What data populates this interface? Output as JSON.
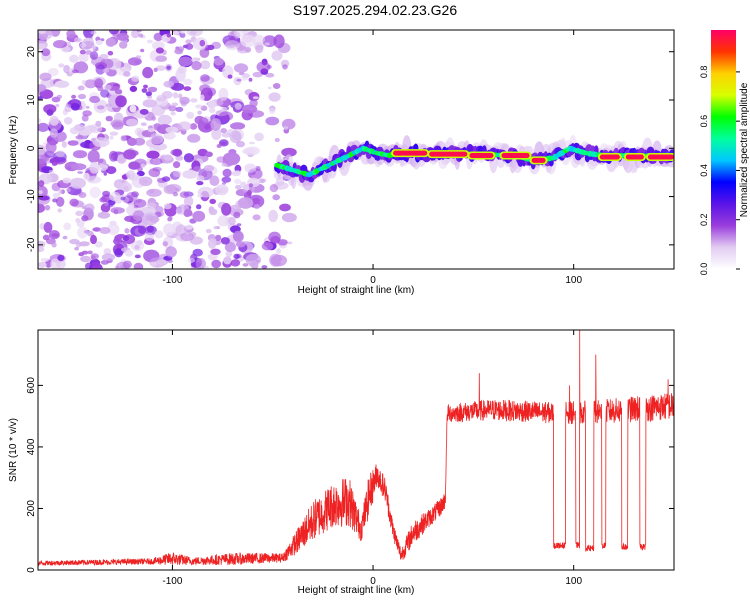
{
  "title": "S197.2025.294.02.23.G26",
  "chart_data": [
    {
      "type": "heatmap",
      "name": "spectrogram",
      "xlabel": "Height of straight line (km)",
      "ylabel": "Frequency (Hz)",
      "xlim": [
        -167,
        150
      ],
      "ylim": [
        -25,
        24.5
      ],
      "xticks": [
        -100,
        0,
        100
      ],
      "yticks": [
        -20,
        -10,
        0,
        10,
        20
      ],
      "colorbar": {
        "label": "Normalized spectral amplitude",
        "range": [
          0.0,
          0.97
        ],
        "ticks": [
          0.0,
          0.2,
          0.4,
          0.6,
          0.8
        ],
        "tick_labels": [
          "0.0",
          "0.2",
          "0.4",
          "0.6",
          "0.8"
        ],
        "colormap": [
          "#ffffff",
          "#e2ccf2",
          "#9a3ddc",
          "#5a14e8",
          "#0000ff",
          "#00c8ff",
          "#00ff9c",
          "#00ff00",
          "#d8ff00",
          "#ffd000",
          "#ff3300",
          "#ff0066"
        ]
      },
      "ridge": [
        {
          "x": -48,
          "y": -3.5
        },
        {
          "x": -40,
          "y": -4.5
        },
        {
          "x": -32,
          "y": -5.5
        },
        {
          "x": -22,
          "y": -3.5
        },
        {
          "x": -12,
          "y": -1.5
        },
        {
          "x": -5,
          "y": 0
        },
        {
          "x": 2,
          "y": -1
        },
        {
          "x": 8,
          "y": -1.5
        },
        {
          "x": 12,
          "y": -1
        },
        {
          "x": 30,
          "y": -1
        },
        {
          "x": 50,
          "y": -1.2
        },
        {
          "x": 70,
          "y": -1.5
        },
        {
          "x": 80,
          "y": -2.5
        },
        {
          "x": 90,
          "y": -2
        },
        {
          "x": 98,
          "y": 0
        },
        {
          "x": 106,
          "y": -1
        },
        {
          "x": 115,
          "y": -1.5
        },
        {
          "x": 130,
          "y": -1.5
        },
        {
          "x": 150,
          "y": -1.5
        }
      ],
      "peak_segments": [
        {
          "x0": 10,
          "x1": 27,
          "y": -1
        },
        {
          "x0": 28,
          "x1": 47,
          "y": -1.2
        },
        {
          "x0": 48,
          "x1": 60,
          "y": -1.5
        },
        {
          "x0": 64,
          "x1": 78,
          "y": -1.5
        },
        {
          "x0": 79,
          "x1": 86,
          "y": -2.5
        },
        {
          "x0": 113,
          "x1": 123,
          "y": -1.8
        },
        {
          "x0": 126,
          "x1": 135,
          "y": -1.8
        },
        {
          "x0": 137,
          "x1": 150,
          "y": -1.8
        }
      ],
      "noise_region": {
        "x0": -167,
        "x1": -48,
        "y0": -25,
        "y1": 24.5
      }
    },
    {
      "type": "line",
      "name": "snr",
      "xlabel": "Height of straight line (km)",
      "ylabel": "SNR (10 * v/v)",
      "xlim": [
        -167,
        150
      ],
      "ylim": [
        0,
        780
      ],
      "xticks": [
        -100,
        0,
        100
      ],
      "yticks": [
        0,
        200,
        400,
        600
      ],
      "color": "#ee2222",
      "envelope": [
        {
          "x": -167,
          "base": 20,
          "spread": 15
        },
        {
          "x": -110,
          "base": 25,
          "spread": 20
        },
        {
          "x": -100,
          "base": 30,
          "spread": 45
        },
        {
          "x": -90,
          "base": 25,
          "spread": 25
        },
        {
          "x": -70,
          "base": 30,
          "spread": 40
        },
        {
          "x": -45,
          "base": 35,
          "spread": 30
        },
        {
          "x": -38,
          "base": 80,
          "spread": 80
        },
        {
          "x": -30,
          "base": 140,
          "spread": 130
        },
        {
          "x": -20,
          "base": 190,
          "spread": 150
        },
        {
          "x": -12,
          "base": 200,
          "spread": 170
        },
        {
          "x": -6,
          "base": 120,
          "spread": 80
        },
        {
          "x": -2,
          "base": 220,
          "spread": 140
        },
        {
          "x": 2,
          "base": 300,
          "spread": 80
        },
        {
          "x": 6,
          "base": 250,
          "spread": 80
        },
        {
          "x": 10,
          "base": 120,
          "spread": 60
        },
        {
          "x": 14,
          "base": 40,
          "spread": 50
        },
        {
          "x": 20,
          "base": 110,
          "spread": 80
        },
        {
          "x": 28,
          "base": 160,
          "spread": 60
        },
        {
          "x": 33,
          "base": 190,
          "spread": 60
        },
        {
          "x": 36,
          "base": 220,
          "spread": 60
        },
        {
          "x": 37,
          "base": 500,
          "spread": 60
        },
        {
          "x": 60,
          "base": 510,
          "spread": 70
        },
        {
          "x": 90,
          "base": 500,
          "spread": 70
        },
        {
          "x": 110,
          "base": 500,
          "spread": 80
        },
        {
          "x": 150,
          "base": 520,
          "spread": 90
        }
      ],
      "drops": [
        {
          "x0": 90,
          "x1": 96,
          "y": 80
        },
        {
          "x0": 101,
          "x1": 103,
          "y": 80
        },
        {
          "x0": 106,
          "x1": 110,
          "y": 70
        },
        {
          "x0": 114,
          "x1": 116,
          "y": 80
        },
        {
          "x0": 124,
          "x1": 127,
          "y": 75
        },
        {
          "x0": 133,
          "x1": 136,
          "y": 75
        }
      ],
      "spikes": [
        {
          "x": 103,
          "y": 780
        },
        {
          "x": 111,
          "y": 700
        },
        {
          "x": 98,
          "y": 600
        },
        {
          "x": 53,
          "y": 640
        },
        {
          "x": 147,
          "y": 620
        }
      ]
    }
  ]
}
